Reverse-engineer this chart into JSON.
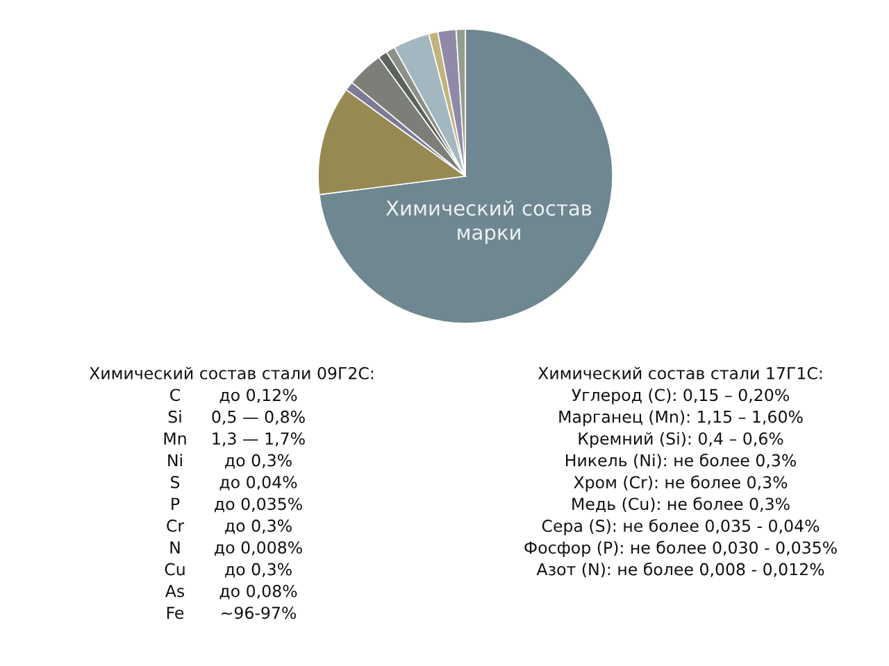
{
  "chart_data": {
    "type": "pie",
    "categories": [
      null,
      null,
      null,
      null,
      null,
      null,
      null,
      null,
      null,
      null
    ],
    "values": [
      73,
      12,
      1,
      4,
      1,
      1,
      4,
      1,
      2,
      1
    ],
    "colors": [
      "#6e8791",
      "#968a52",
      "#7d7a95",
      "#7c7f78",
      "#5e625f",
      "#8c9088",
      "#a3b7c1",
      "#c2b27c",
      "#8f8aa8",
      "#949d8e"
    ],
    "annotations": [
      "Химический состав марки",
      "Химический состав стали 09Г2С:\nC\tдо 0,12%\nSi\t0,5 — 0,8%\nMn\t1,3 — 1,7%\nNi\tдо 0,3%\nS\tдо 0,04%\nP\tдо 0,035%\nCr\tдо 0,3%\nN\tдо 0,008%\nCu\tдо 0,3%\nAs\tдо 0,08%\nFe\t~96-97%",
      "Химический состав стали 17Г1С:\nУглерод (C): 0,15 – 0,20%\nМарганец (Mn): 1,15 – 1,60%\nКремний (Si): 0,4 – 0,6%\nНикель (Ni): не более 0,3%\nХром (Cr): не более 0,3%\nМедь (Cu): не более 0,3%\nСера (S): не более 0,035 - 0,04%\nФосфор (P): не более 0,030 - 0,035%\nАзот (N): не более 0,008 - 0,012%"
    ]
  }
}
